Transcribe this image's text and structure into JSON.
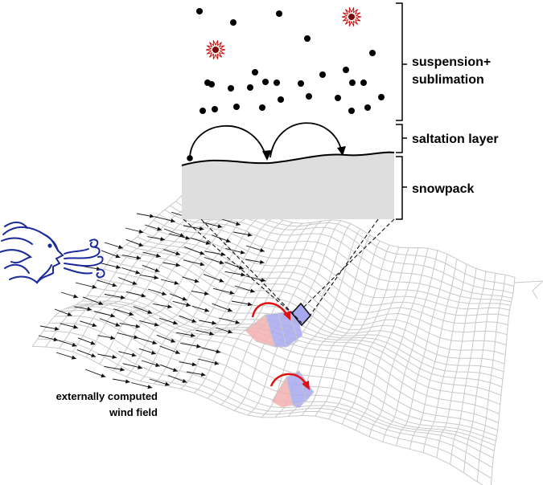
{
  "labels": {
    "suspension_line1": "suspension+",
    "suspension_line2": "sublimation",
    "saltation": "saltation layer",
    "snowpack": "snowpack",
    "wind_field_line1": "externally computed",
    "wind_field_line2": "wind field"
  },
  "colors": {
    "mesh": "#c8c8c8",
    "snowpack_fill": "#dedede",
    "wind_face": "#1a2a9c",
    "ejection_arc": "#e01010",
    "lee_slope": "#a8a8f0",
    "luv_slope": "#f2b0b0",
    "sublimating_particle": "#cc1010"
  },
  "icons": {
    "wind_face": "wind-blowing-face-icon",
    "sublimating_particle": "starburst-icon"
  }
}
